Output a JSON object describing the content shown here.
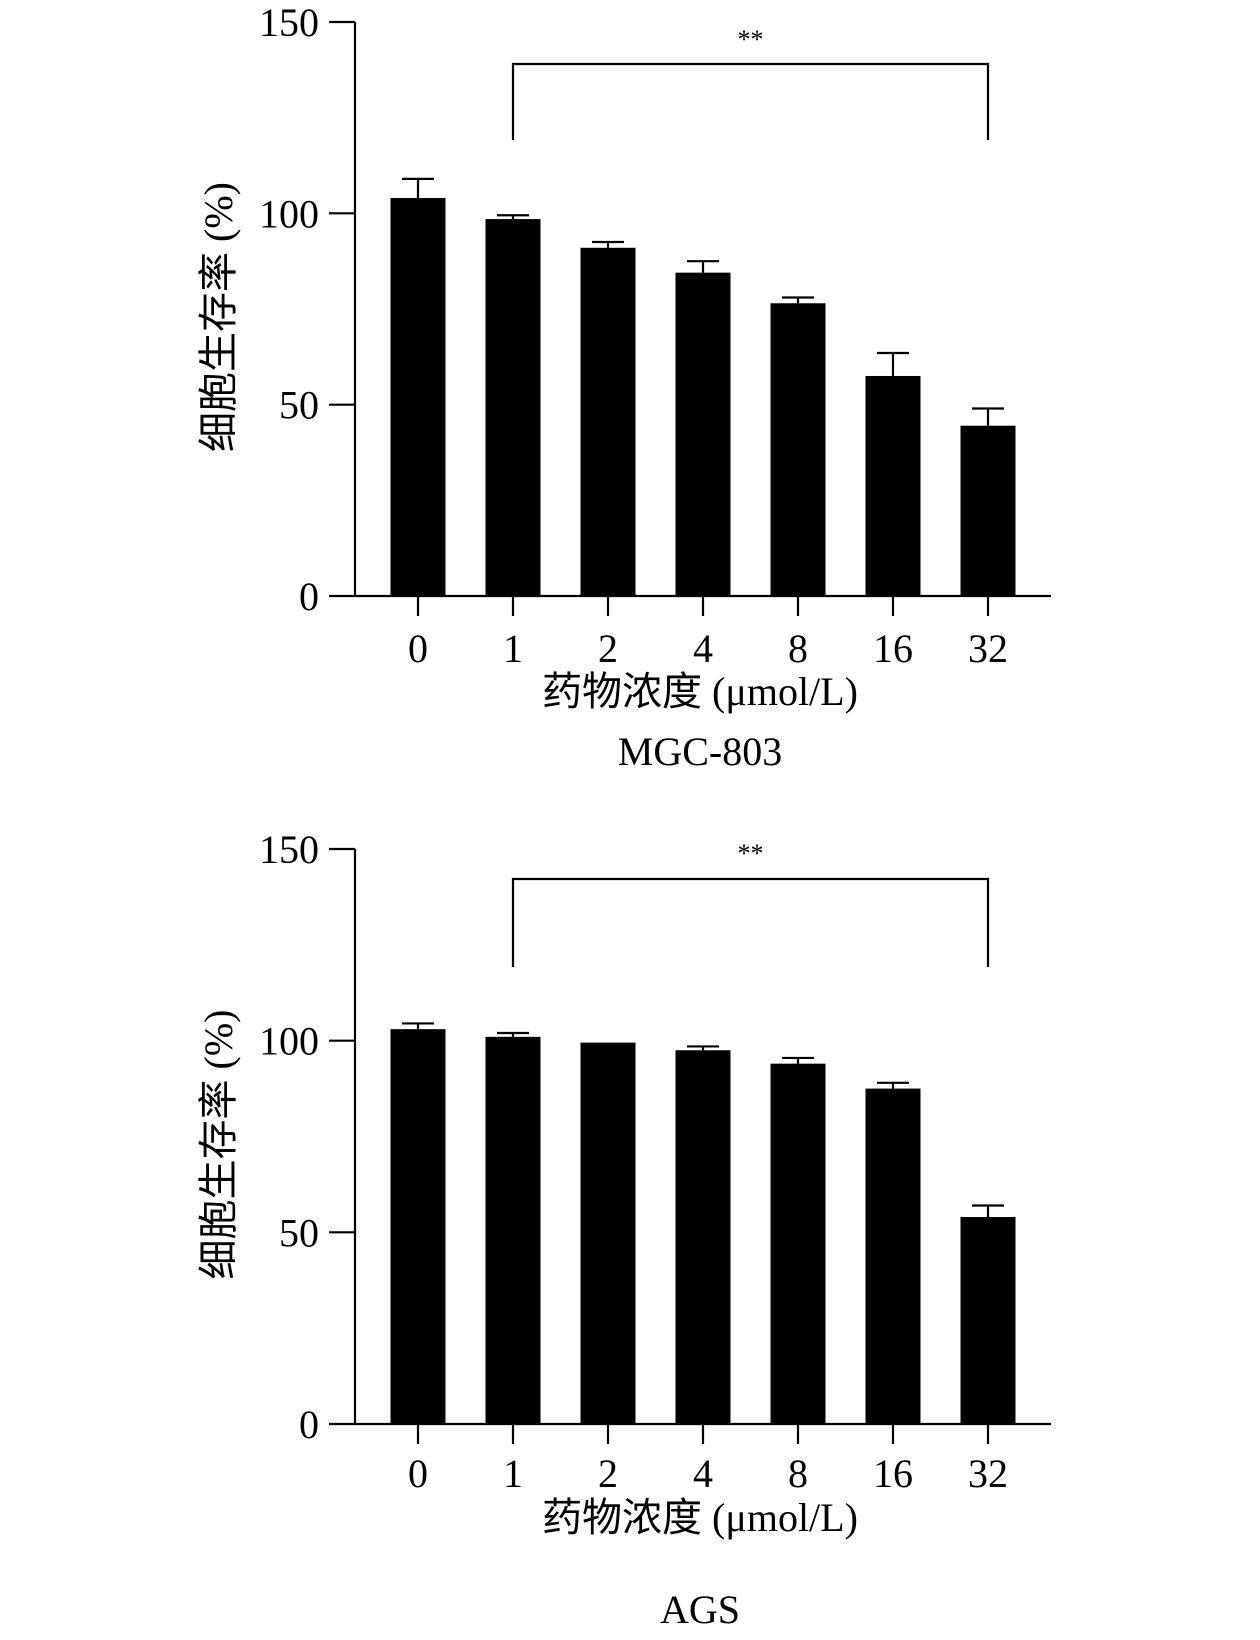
{
  "chart_data": [
    {
      "type": "bar",
      "title": "MGC-803",
      "xlabel": "药物浓度 (μmol/L)",
      "ylabel": "细胞生存率 (%)",
      "ylim": [
        0,
        150
      ],
      "yticks": [
        0,
        50,
        100,
        150
      ],
      "categories": [
        "0",
        "1",
        "2",
        "4",
        "8",
        "16",
        "32"
      ],
      "values": [
        104,
        98.5,
        91,
        84.5,
        76.5,
        57.5,
        44.5
      ],
      "errors": [
        5,
        1,
        1.5,
        3,
        1.5,
        6,
        4.5
      ],
      "significance": {
        "from": "1",
        "to": "32",
        "label": "**"
      },
      "grid": false,
      "legend": "none",
      "colors": {
        "bar": "#000000"
      }
    },
    {
      "type": "bar",
      "title": "AGS",
      "xlabel": "药物浓度 (μmol/L)",
      "ylabel": "细胞生存率 (%)",
      "ylim": [
        0,
        150
      ],
      "yticks": [
        0,
        50,
        100,
        150
      ],
      "categories": [
        "0",
        "1",
        "2",
        "4",
        "8",
        "16",
        "32"
      ],
      "values": [
        103,
        101,
        99.5,
        97.5,
        94,
        87.5,
        54
      ],
      "errors": [
        1.5,
        1,
        0,
        1,
        1.5,
        1.5,
        3
      ],
      "significance": {
        "from": "1",
        "to": "32",
        "label": "**"
      },
      "grid": false,
      "legend": "none",
      "colors": {
        "bar": "#000000"
      }
    }
  ]
}
